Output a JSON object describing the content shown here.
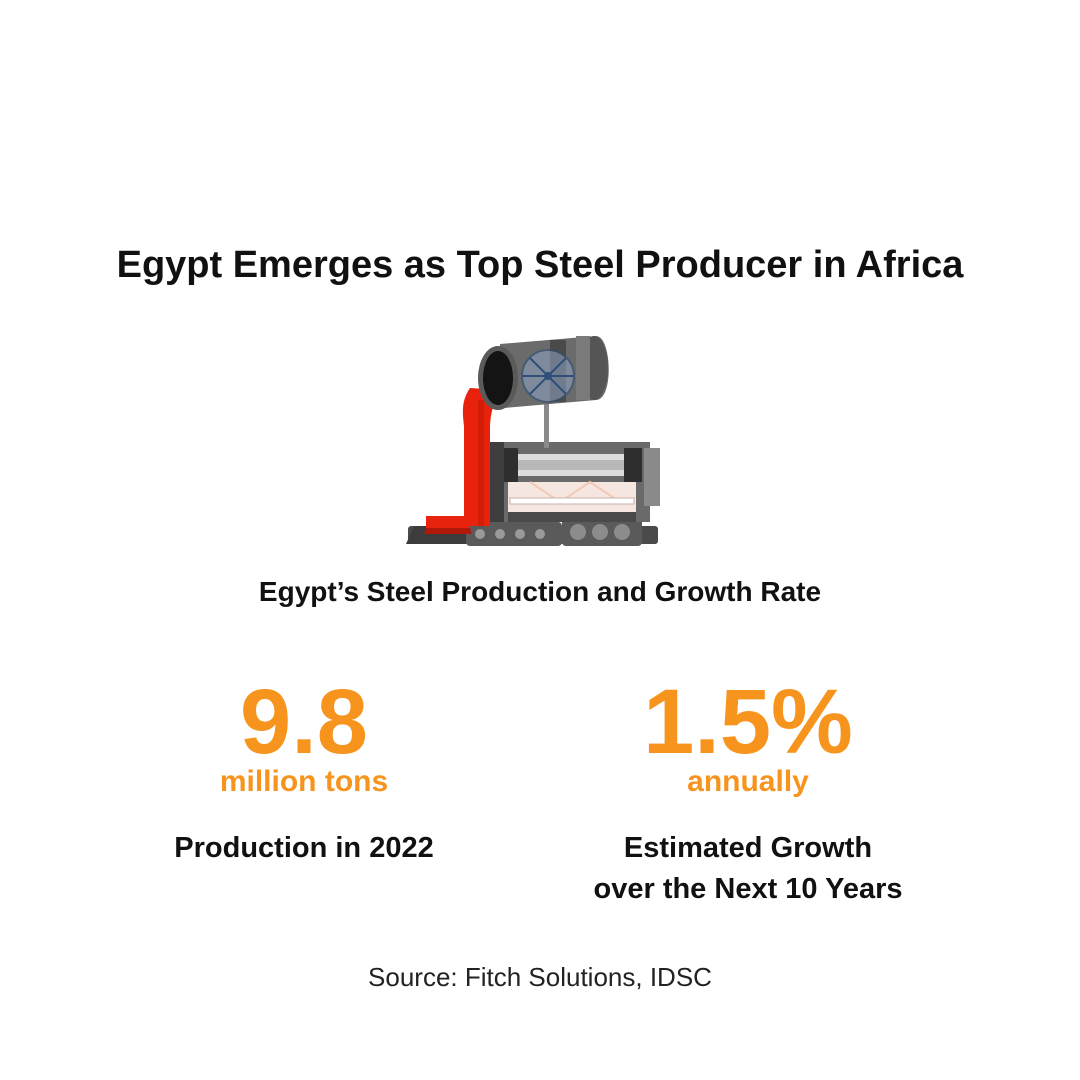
{
  "title": "Egypt Emerges as Top Steel Producer in Africa",
  "subtitle": "Egypt’s Steel Production and Growth Rate",
  "stats": [
    {
      "value": "9.8",
      "unit": "million tons",
      "description_lines": [
        "Production in 2022"
      ]
    },
    {
      "value": "1.5%",
      "unit": "annually",
      "description_lines": [
        "Estimated Growth",
        "over the Next 10 Years"
      ]
    }
  ],
  "source": "Source: Fitch Solutions, IDSC",
  "colors": {
    "accent": "#f7941d",
    "text": "#111111",
    "molten_steel": "#e8220c",
    "machine_gray": "#5a5a5a"
  },
  "illustration": {
    "icon": "steel-ladle-casting-machine-icon"
  }
}
